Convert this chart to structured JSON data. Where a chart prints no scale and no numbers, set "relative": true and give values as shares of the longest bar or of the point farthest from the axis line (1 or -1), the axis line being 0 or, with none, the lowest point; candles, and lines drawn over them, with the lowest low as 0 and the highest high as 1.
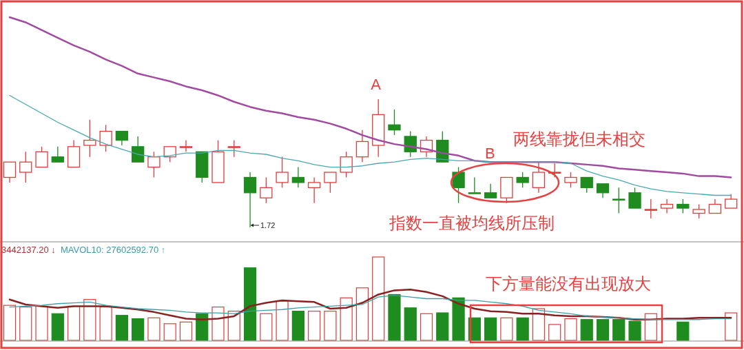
{
  "chart_data": [
    {
      "type": "candlestick",
      "relative": true,
      "categories": [
        null,
        null,
        null,
        null,
        null,
        null,
        null,
        null,
        null,
        null,
        null,
        null,
        null,
        null,
        null,
        null,
        null,
        null,
        null,
        null,
        null,
        null,
        null,
        null,
        null,
        null,
        null,
        null,
        null,
        null,
        null,
        null,
        null,
        null,
        null,
        null,
        null,
        null,
        null,
        null,
        null,
        null,
        null,
        null,
        null,
        null
      ],
      "ohlc": [
        [
          0.39,
          0.51,
          0.35,
          0.51
        ],
        [
          0.43,
          0.59,
          0.35,
          0.51
        ],
        [
          0.47,
          0.63,
          0.47,
          0.59
        ],
        [
          0.55,
          0.63,
          0.51,
          0.51
        ],
        [
          0.47,
          0.68,
          0.47,
          0.63
        ],
        [
          0.64,
          0.84,
          0.55,
          0.68
        ],
        [
          0.64,
          0.8,
          0.59,
          0.75
        ],
        [
          0.75,
          0.75,
          0.64,
          0.68
        ],
        [
          0.63,
          0.71,
          0.51,
          0.51
        ],
        [
          0.47,
          0.59,
          0.39,
          0.55
        ],
        [
          0.55,
          0.63,
          0.51,
          0.63
        ],
        [
          0.63,
          0.68,
          0.59,
          0.63
        ],
        [
          0.59,
          0.59,
          0.35,
          0.39
        ],
        [
          0.35,
          0.68,
          0.35,
          0.59
        ],
        [
          0.63,
          0.68,
          0.55,
          0.63
        ],
        [
          0.39,
          0.43,
          0,
          0.27
        ],
        [
          0.23,
          0.39,
          0.19,
          0.31
        ],
        [
          0.35,
          0.55,
          0.31,
          0.43
        ],
        [
          0.39,
          0.47,
          0.31,
          0.35
        ],
        [
          0.31,
          0.39,
          0.19,
          0.35
        ],
        [
          0.35,
          0.43,
          0.27,
          0.43
        ],
        [
          0.43,
          0.59,
          0.39,
          0.55
        ],
        [
          0.55,
          0.76,
          0.51,
          0.67
        ],
        [
          0.64,
          1.0,
          0.55,
          0.88
        ],
        [
          0.8,
          0.92,
          0.72,
          0.76
        ],
        [
          0.71,
          0.75,
          0.55,
          0.59
        ],
        [
          0.59,
          0.71,
          0.55,
          0.68
        ],
        [
          0.68,
          0.75,
          0.51,
          0.51
        ],
        [
          0.43,
          0.47,
          0.19,
          0.31
        ],
        [
          0.27,
          0.39,
          0.27,
          0.27
        ],
        [
          0.27,
          0.34,
          0.23,
          0.23
        ],
        [
          0.23,
          0.39,
          0.19,
          0.39
        ],
        [
          0.39,
          0.43,
          0.31,
          0.35
        ],
        [
          0.31,
          0.51,
          0.27,
          0.43
        ],
        [
          0.43,
          0.5,
          0.39,
          0.43
        ],
        [
          0.35,
          0.43,
          0.31,
          0.39
        ],
        [
          0.39,
          0.39,
          0.27,
          0.31
        ],
        [
          0.34,
          0.34,
          0.23,
          0.27
        ],
        [
          0.22,
          0.31,
          0.11,
          0.22
        ],
        [
          0.27,
          0.31,
          0.15,
          0.15
        ],
        [
          0.14,
          0.22,
          0.07,
          0.14
        ],
        [
          0.15,
          0.22,
          0.11,
          0.18
        ],
        [
          0.18,
          0.22,
          0.11,
          0.15
        ],
        [
          0.11,
          0.18,
          0.07,
          0.14
        ],
        [
          0.11,
          0.22,
          0.11,
          0.18
        ],
        [
          0.15,
          0.26,
          0.15,
          0.22
        ]
      ],
      "colors": [
        "#e03c3c",
        "#e03c3c",
        "#e03c3c",
        "#1e8c1e",
        "#e03c3c",
        "#e03c3c",
        "#e03c3c",
        "#1e8c1e",
        "#1e8c1e",
        "#e03c3c",
        "#e03c3c",
        "#e03c3c",
        "#1e8c1e",
        "#e03c3c",
        "#e03c3c",
        "#1e8c1e",
        "#e03c3c",
        "#e03c3c",
        "#1e8c1e",
        "#e03c3c",
        "#e03c3c",
        "#e03c3c",
        "#e03c3c",
        "#e03c3c",
        "#1e8c1e",
        "#1e8c1e",
        "#e03c3c",
        "#1e8c1e",
        "#1e8c1e",
        "#1e8c1e",
        "#1e8c1e",
        "#e03c3c",
        "#1e8c1e",
        "#e03c3c",
        "#e03c3c",
        "#e03c3c",
        "#1e8c1e",
        "#1e8c1e",
        "#1e8c1e",
        "#1e8c1e",
        "#e03c3c",
        "#e03c3c",
        "#1e8c1e",
        "#e03c3c",
        "#e03c3c",
        "#e03c3c"
      ],
      "series": [
        {
          "type": "line",
          "color": "#a04aa0",
          "values": [
            1.64,
            1.6,
            1.54,
            1.48,
            1.42,
            1.37,
            1.31,
            1.26,
            1.2,
            1.17,
            1.14,
            1.1,
            1.07,
            1.03,
            0.98,
            0.94,
            0.91,
            0.89,
            0.86,
            0.84,
            0.81,
            0.77,
            0.72,
            0.68,
            0.65,
            0.63,
            0.61,
            0.58,
            0.56,
            0.52,
            0.51,
            0.51,
            0.51,
            0.51,
            0.51,
            0.5,
            0.49,
            0.48,
            0.46,
            0.45,
            0.44,
            0.43,
            0.42,
            0.4,
            0.4,
            0.39
          ]
        },
        {
          "type": "line",
          "color": "#4aa8b0",
          "values": [
            1.03,
            0.96,
            0.89,
            0.82,
            0.76,
            0.7,
            0.65,
            0.61,
            0.57,
            0.55,
            0.56,
            0.58,
            0.58,
            0.6,
            0.6,
            0.58,
            0.57,
            0.54,
            0.52,
            0.49,
            0.47,
            0.47,
            0.48,
            0.5,
            0.51,
            0.53,
            0.54,
            0.53,
            0.52,
            0.52,
            0.51,
            0.51,
            0.51,
            0.51,
            0.51,
            0.5,
            0.44,
            0.4,
            0.37,
            0.33,
            0.3,
            0.28,
            0.27,
            0.26,
            0.25,
            0.25
          ]
        }
      ],
      "annotations": [
        {
          "text": "A",
          "y": 1.0
        },
        "B",
        "两线靠拢但未相交",
        "指数一直被均线所压制",
        "1.72"
      ]
    },
    {
      "type": "bar",
      "relative": true,
      "categories": [
        null,
        null,
        null,
        null,
        null,
        null,
        null,
        null,
        null,
        null,
        null,
        null,
        null,
        null,
        null,
        null,
        null,
        null,
        null,
        null,
        null,
        null,
        null,
        null,
        null,
        null,
        null,
        null,
        null,
        null,
        null,
        null,
        null,
        null,
        null,
        null,
        null,
        null,
        null,
        null,
        null,
        null,
        null,
        null,
        null,
        null
      ],
      "values": [
        0.42,
        0.4,
        0.41,
        0.32,
        0.41,
        0.49,
        0.4,
        0.3,
        0.26,
        0.27,
        0.2,
        0.22,
        0.32,
        0.4,
        0.35,
        0.87,
        0.32,
        0.47,
        0.35,
        0.35,
        0.35,
        0.51,
        0.63,
        1.0,
        0.55,
        0.39,
        0.32,
        0.33,
        0.51,
        0.27,
        0.27,
        0.27,
        0.27,
        0.38,
        0.19,
        0.26,
        0.25,
        0.25,
        0.25,
        0.23,
        0.32,
        null,
        0.22,
        null,
        null,
        0.33
      ],
      "colors": [
        "#e03c3c",
        "#e03c3c",
        "#e03c3c",
        "#1e8c1e",
        "#e03c3c",
        "#e03c3c",
        "#e03c3c",
        "#1e8c1e",
        "#1e8c1e",
        "#e03c3c",
        "#e03c3c",
        "#e03c3c",
        "#1e8c1e",
        "#e03c3c",
        "#e03c3c",
        "#1e8c1e",
        "#e03c3c",
        "#e03c3c",
        "#1e8c1e",
        "#e03c3c",
        "#e03c3c",
        "#e03c3c",
        "#e03c3c",
        "#e03c3c",
        "#1e8c1e",
        "#1e8c1e",
        "#e03c3c",
        "#1e8c1e",
        "#1e8c1e",
        "#1e8c1e",
        "#1e8c1e",
        "#e03c3c",
        "#1e8c1e",
        "#e03c3c",
        "#e03c3c",
        "#e03c3c",
        "#1e8c1e",
        "#1e8c1e",
        "#1e8c1e",
        "#1e8c1e",
        "#e03c3c",
        null,
        "#1e8c1e",
        null,
        null,
        "#e03c3c"
      ],
      "series": [
        {
          "type": "line",
          "color": "#8b2020",
          "values": [
            0.49,
            0.43,
            0.41,
            0.39,
            0.41,
            0.41,
            0.41,
            0.39,
            0.37,
            0.34,
            0.3,
            0.26,
            0.25,
            0.26,
            0.29,
            0.41,
            0.45,
            0.48,
            0.47,
            0.46,
            0.38,
            0.39,
            0.45,
            0.55,
            0.6,
            0.61,
            0.58,
            0.53,
            0.44,
            0.38,
            0.35,
            0.34,
            0.32,
            0.32,
            0.3,
            0.29,
            0.29,
            0.28,
            0.27,
            0.25,
            0.25,
            0.26,
            0.26,
            0.27,
            0.27,
            0.27
          ]
        },
        {
          "type": "line",
          "color": "#3aa0a8",
          "values": [
            0.4,
            0.41,
            0.42,
            0.44,
            0.45,
            0.46,
            0.42,
            0.4,
            0.38,
            0.37,
            0.36,
            0.34,
            0.33,
            0.33,
            0.32,
            0.35,
            0.36,
            0.37,
            0.39,
            0.4,
            0.41,
            0.42,
            0.43,
            0.52,
            0.54,
            0.52,
            0.5,
            0.5,
            0.48,
            0.48,
            0.46,
            0.44,
            0.41,
            0.36,
            0.34,
            0.32,
            0.29,
            0.28,
            0.27,
            0.26,
            0.25,
            0.25,
            0.25,
            0.25,
            0.26,
            0.26
          ]
        }
      ],
      "annotations": [
        "3442137.20 ↓",
        "MAVOL10: 27602592.70 ↑",
        "下方量能没有出现放大"
      ]
    }
  ]
}
